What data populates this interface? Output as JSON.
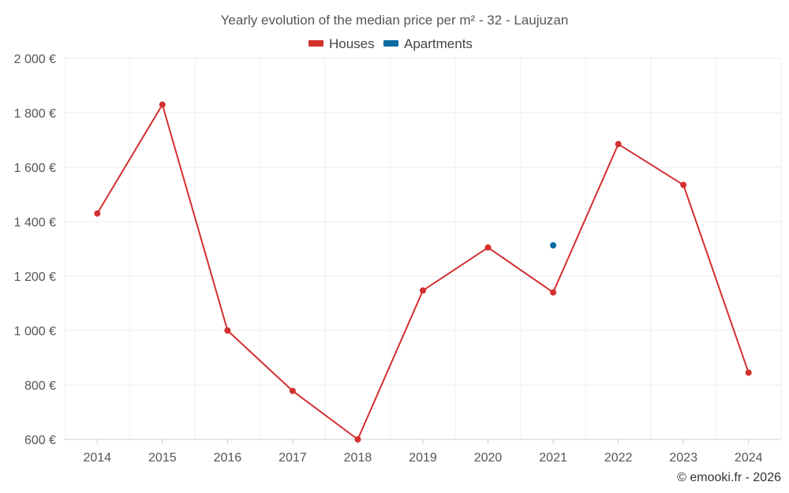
{
  "chart_data": {
    "type": "line",
    "title": "Yearly evolution of the median price per m² - 32 - Laujuzan",
    "x": [
      "2014",
      "2015",
      "2016",
      "2017",
      "2018",
      "2019",
      "2020",
      "2021",
      "2022",
      "2023",
      "2024"
    ],
    "ylim": [
      600,
      2000
    ],
    "yticks": [
      600,
      800,
      1000,
      1200,
      1400,
      1600,
      1800,
      2000
    ],
    "ytick_labels": [
      "600 €",
      "800 €",
      "1 000 €",
      "1 200 €",
      "1 400 €",
      "1 600 €",
      "1 800 €",
      "2 000 €"
    ],
    "grid": true,
    "legend_position": "top-center",
    "series": [
      {
        "name": "Houses",
        "color": "#d32f2f",
        "values": [
          1430,
          1830,
          1000,
          778,
          600,
          1147,
          1305,
          1140,
          1685,
          1535,
          845
        ]
      },
      {
        "name": "Apartments",
        "color": "#0b6aa2",
        "values": [
          null,
          null,
          null,
          null,
          null,
          null,
          null,
          1313,
          null,
          null,
          null
        ]
      }
    ],
    "credit": "© emooki.fr - 2026"
  }
}
